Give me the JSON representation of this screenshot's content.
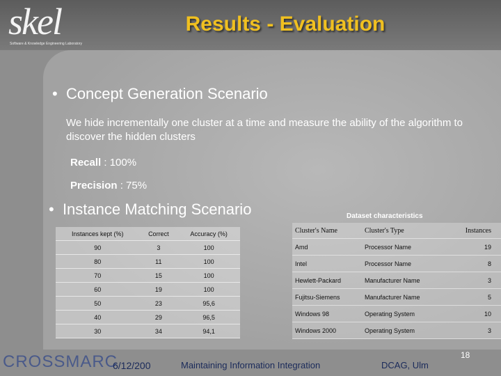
{
  "header": {
    "logo": "skel",
    "logo_subtitle": "Software & Knowledge Engineering Laboratory",
    "title": "Results - Evaluation"
  },
  "section1": {
    "bullet": "Concept Generation Scenario",
    "text": "We hide incrementally one cluster at a time and measure the ability of the algorithm to discover the hidden clusters",
    "recall_label": "Recall",
    "recall_value": ": 100%",
    "precision_label": "Precision",
    "precision_value": ": 75%"
  },
  "section2": {
    "bullet": "Instance Matching Scenario"
  },
  "table1": {
    "header": [
      "Instances kept (%)",
      "Correct",
      "Accuracy (%)"
    ],
    "rows": [
      [
        "90",
        "3",
        "100"
      ],
      [
        "80",
        "11",
        "100"
      ],
      [
        "70",
        "15",
        "100"
      ],
      [
        "60",
        "19",
        "100"
      ],
      [
        "50",
        "23",
        "95,6"
      ],
      [
        "40",
        "29",
        "96,5"
      ],
      [
        "30",
        "34",
        "94,1"
      ]
    ]
  },
  "table2": {
    "title": "Dataset characteristics",
    "header": [
      "Cluster's Name",
      "Cluster's Type",
      "Instances"
    ],
    "rows": [
      [
        "Amd",
        "Processor Name",
        "19"
      ],
      [
        "Intel",
        "Processor Name",
        "8"
      ],
      [
        "Hewlett-Packard",
        "Manufacturer Name",
        "3"
      ],
      [
        "Fujitsu-Siemens",
        "Manufacturer Name",
        "5"
      ],
      [
        "Windows 98",
        "Operating System",
        "10"
      ],
      [
        "Windows 2000",
        "Operating System",
        "3"
      ]
    ]
  },
  "footer": {
    "logo": "CROSSMARC",
    "date": "6/12/200",
    "topic": "Maintaining Information Integration",
    "venue": "DCAG, Ulm",
    "page": "18"
  }
}
